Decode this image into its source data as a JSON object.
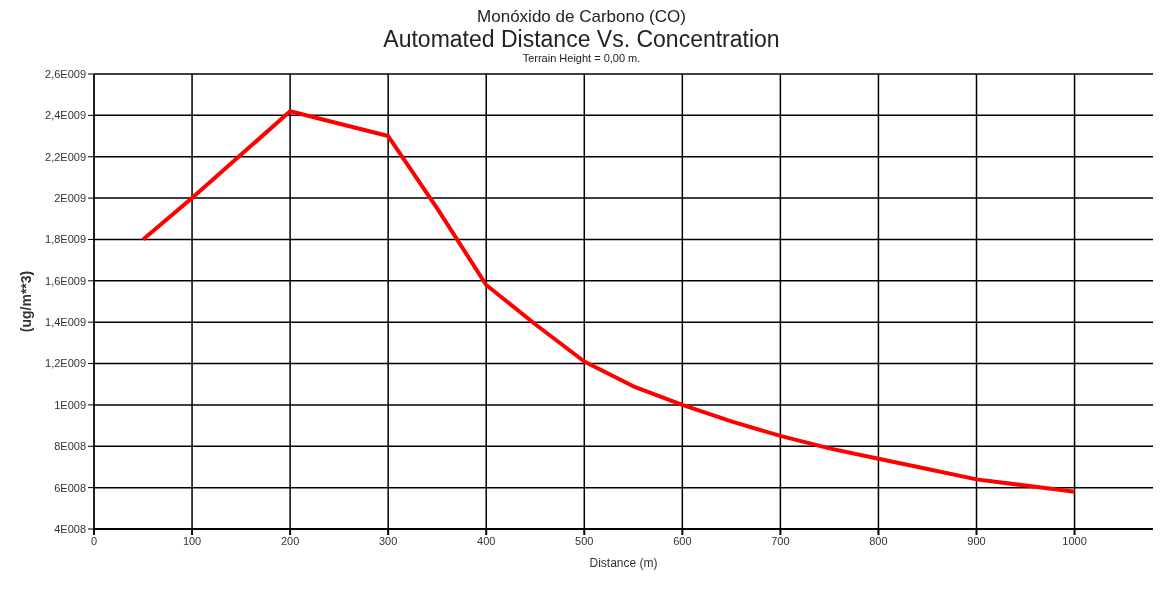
{
  "chart_data": {
    "type": "line",
    "annotations": [
      "Monóxido de Carbono (CO)"
    ],
    "title": "Automated Distance Vs. Concentration",
    "subtitle": "Terrain Height = 0,00 m.",
    "xlabel": "Distance (m)",
    "ylabel": "(ug/m**3)",
    "x": [
      50,
      100,
      200,
      300,
      350,
      400,
      450,
      500,
      550,
      600,
      650,
      700,
      750,
      800,
      850,
      900,
      950,
      1000
    ],
    "series": [
      {
        "color": "#ff0000",
        "values": [
          1800000000,
          2000000000,
          2420000000,
          2300000000,
          1950000000,
          1580000000,
          1390000000,
          1210000000,
          1090000000,
          1000000000,
          920000000,
          850000000,
          790000000,
          740000000,
          690000000,
          640000000,
          610000000,
          580000000
        ]
      }
    ],
    "xlim": [
      0,
      1080
    ],
    "xticks": [
      0,
      100,
      200,
      300,
      400,
      500,
      600,
      700,
      800,
      900,
      1000
    ],
    "ylim": [
      400000000,
      2600000000
    ],
    "yticks": [
      {
        "value": 400000000,
        "label": "4E008"
      },
      {
        "value": 600000000,
        "label": "6E008"
      },
      {
        "value": 800000000,
        "label": "8E008"
      },
      {
        "value": 1000000000,
        "label": "1E009"
      },
      {
        "value": 1200000000,
        "label": "1,2E009"
      },
      {
        "value": 1400000000,
        "label": "1,4E009"
      },
      {
        "value": 1600000000,
        "label": "1,6E009"
      },
      {
        "value": 1800000000,
        "label": "1,8E009"
      },
      {
        "value": 2000000000,
        "label": "2E009"
      },
      {
        "value": 2200000000,
        "label": "2,2E009"
      },
      {
        "value": 2400000000,
        "label": "2,4E009"
      },
      {
        "value": 2600000000,
        "label": "2,6E009"
      }
    ],
    "grid": true,
    "legend": false,
    "marker": "none",
    "line_style": "solid"
  }
}
